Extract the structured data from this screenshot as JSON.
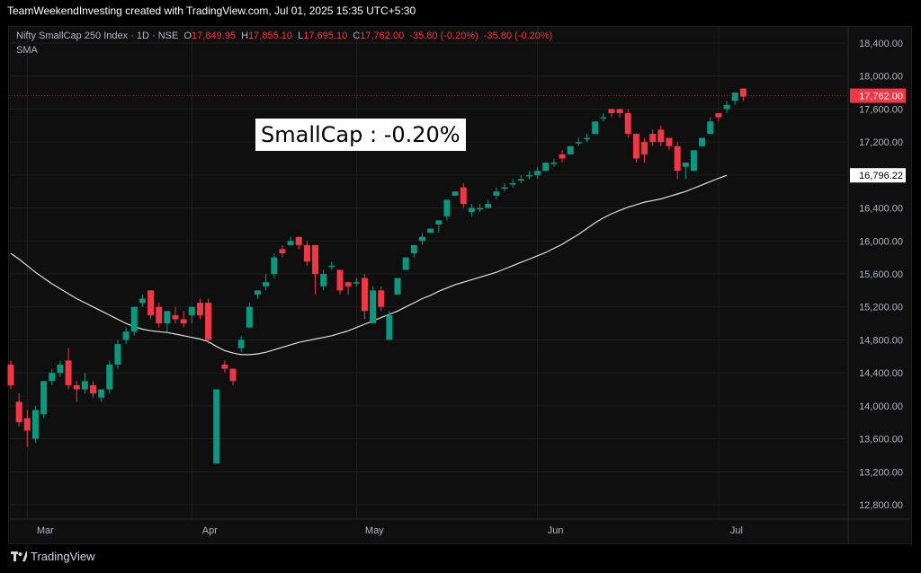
{
  "header": {
    "title": "TeamWeekendInvesting created with TradingView.com, Jul 01, 2025 15:35 UTC+5:30"
  },
  "legend": {
    "symbol": "Nifty SmallCap 250 Index · 1D · NSE",
    "open_label": "O",
    "open": "17,849.95",
    "high_label": "H",
    "high": "17,855.10",
    "low_label": "L",
    "low": "17,695.10",
    "close_label": "C",
    "close": "17,762.00",
    "change": "-35.80 (-0.20%)",
    "change2": "-35.80 (-0.20%)",
    "indicator": "SMA"
  },
  "annotation": {
    "text": "SmallCap : -0.20%"
  },
  "footer": {
    "brand": "TradingView"
  },
  "colors": {
    "up": "#089981",
    "down": "#f23645",
    "sma": "#e0e0e0",
    "background": "#0f0f0f",
    "grid": "#1f1f1f",
    "axis_text": "#b2b5be"
  },
  "chart_data": {
    "type": "candlestick",
    "y_ticks": [
      "18,400.00",
      "18,000.00",
      "17,600.00",
      "17,200.00",
      "16,800.00",
      "16,400.00",
      "16,000.00",
      "15,600.00",
      "15,200.00",
      "14,800.00",
      "14,400.00",
      "14,000.00",
      "13,600.00",
      "13,200.00",
      "12,800.00"
    ],
    "y_tick_values": [
      18400,
      18000,
      17600,
      17200,
      16800,
      16400,
      16000,
      15600,
      15200,
      14800,
      14400,
      14000,
      13600,
      13200,
      12800
    ],
    "ylim": [
      12600,
      18800
    ],
    "x_labels": [
      {
        "label": "Mar",
        "index": 2
      },
      {
        "label": "Apr",
        "index": 22
      },
      {
        "label": "May",
        "index": 42
      },
      {
        "label": "Jun",
        "index": 64
      },
      {
        "label": "Jul",
        "index": 86
      }
    ],
    "last_price_label": "17,762.00",
    "last_price_value": 17762,
    "sma_label": "16,796.22",
    "sma_value": 16796.22,
    "candles": [
      [
        14500,
        14550,
        14200,
        14250
      ],
      [
        14050,
        14150,
        13750,
        13800
      ],
      [
        13850,
        13950,
        13500,
        13700
      ],
      [
        13600,
        14000,
        13550,
        13950
      ],
      [
        13900,
        14300,
        13850,
        14300
      ],
      [
        14300,
        14450,
        14250,
        14400
      ],
      [
        14400,
        14550,
        14350,
        14500
      ],
      [
        14550,
        14700,
        14200,
        14250
      ],
      [
        14250,
        14300,
        14050,
        14200
      ],
      [
        14200,
        14400,
        14150,
        14300
      ],
      [
        14250,
        14300,
        14100,
        14150
      ],
      [
        14100,
        14200,
        14050,
        14200
      ],
      [
        14200,
        14550,
        14150,
        14500
      ],
      [
        14500,
        14800,
        14450,
        14750
      ],
      [
        14800,
        14950,
        14750,
        14900
      ],
      [
        14900,
        15200,
        14850,
        15200
      ],
      [
        15250,
        15350,
        15200,
        15300
      ],
      [
        15400,
        15400,
        15050,
        15100
      ],
      [
        15200,
        15250,
        14950,
        15000
      ],
      [
        15000,
        15150,
        14900,
        15150
      ],
      [
        15100,
        15200,
        15000,
        15050
      ],
      [
        15050,
        15150,
        14950,
        15000
      ],
      [
        15100,
        15200,
        15000,
        15200
      ],
      [
        15250,
        15300,
        15050,
        15100
      ],
      [
        15250,
        15300,
        14750,
        14800
      ],
      [
        13300,
        14200,
        13300,
        14200
      ],
      [
        14500,
        14550,
        14400,
        14450
      ],
      [
        14450,
        14450,
        14250,
        14300
      ],
      [
        14700,
        14850,
        14650,
        14800
      ],
      [
        14950,
        15250,
        14950,
        15200
      ],
      [
        15350,
        15400,
        15300,
        15400
      ],
      [
        15450,
        15600,
        15400,
        15500
      ],
      [
        15600,
        15850,
        15550,
        15800
      ],
      [
        15900,
        15950,
        15800,
        15850
      ],
      [
        15950,
        16050,
        15950,
        16000
      ],
      [
        16050,
        16050,
        15900,
        15950
      ],
      [
        15950,
        16000,
        15700,
        15750
      ],
      [
        15950,
        15950,
        15350,
        15600
      ],
      [
        15450,
        15650,
        15400,
        15600
      ],
      [
        15700,
        15750,
        15650,
        15700
      ],
      [
        15650,
        15650,
        15350,
        15400
      ],
      [
        15500,
        15500,
        15350,
        15450
      ],
      [
        15500,
        15550,
        15450,
        15500
      ],
      [
        15550,
        15600,
        15050,
        15150
      ],
      [
        15000,
        15450,
        15000,
        15400
      ],
      [
        15400,
        15450,
        15150,
        15200
      ],
      [
        14800,
        15150,
        14800,
        15100
      ],
      [
        15350,
        15550,
        15350,
        15550
      ],
      [
        15650,
        15800,
        15650,
        15800
      ],
      [
        15850,
        15950,
        15800,
        15950
      ],
      [
        16000,
        16100,
        15950,
        16050
      ],
      [
        16100,
        16150,
        16100,
        16150
      ],
      [
        16200,
        16250,
        16100,
        16250
      ],
      [
        16300,
        16500,
        16250,
        16500
      ],
      [
        16550,
        16600,
        16550,
        16600
      ],
      [
        16650,
        16700,
        16400,
        16450
      ],
      [
        16350,
        16450,
        16300,
        16400
      ],
      [
        16400,
        16450,
        16350,
        16400
      ],
      [
        16400,
        16500,
        16400,
        16450
      ],
      [
        16550,
        16650,
        16500,
        16600
      ],
      [
        16650,
        16700,
        16600,
        16650
      ],
      [
        16700,
        16750,
        16650,
        16700
      ],
      [
        16750,
        16800,
        16700,
        16750
      ],
      [
        16800,
        16850,
        16750,
        16800
      ],
      [
        16800,
        16900,
        16750,
        16850
      ],
      [
        16850,
        16950,
        16850,
        16950
      ],
      [
        16950,
        17000,
        16900,
        16950
      ],
      [
        17050,
        17100,
        16950,
        17000
      ],
      [
        17050,
        17150,
        17050,
        17150
      ],
      [
        17200,
        17250,
        17150,
        17200
      ],
      [
        17250,
        17300,
        17200,
        17250
      ],
      [
        17300,
        17450,
        17300,
        17450
      ],
      [
        17500,
        17550,
        17450,
        17500
      ],
      [
        17600,
        17600,
        17500,
        17550
      ],
      [
        17600,
        17600,
        17500,
        17550
      ],
      [
        17550,
        17600,
        17250,
        17300
      ],
      [
        17300,
        17300,
        16950,
        17000
      ],
      [
        17200,
        17250,
        16950,
        17050
      ],
      [
        17300,
        17350,
        17150,
        17200
      ],
      [
        17350,
        17400,
        17150,
        17200
      ],
      [
        17250,
        17250,
        17100,
        17150
      ],
      [
        17150,
        17200,
        16750,
        16850
      ],
      [
        16900,
        16950,
        16750,
        16950
      ],
      [
        16850,
        17100,
        16850,
        17100
      ],
      [
        17150,
        17250,
        17150,
        17250
      ],
      [
        17300,
        17500,
        17300,
        17450
      ],
      [
        17550,
        17550,
        17450,
        17500
      ],
      [
        17600,
        17700,
        17550,
        17650
      ],
      [
        17700,
        17800,
        17650,
        17800
      ],
      [
        17850,
        17850,
        17700,
        17750
      ]
    ],
    "sma": [
      15850,
      15780,
      15700,
      15620,
      15550,
      15480,
      15420,
      15360,
      15300,
      15250,
      15200,
      15150,
      15100,
      15050,
      15000,
      14960,
      14930,
      14910,
      14900,
      14890,
      14870,
      14850,
      14830,
      14810,
      14780,
      14720,
      14670,
      14640,
      14620,
      14620,
      14630,
      14650,
      14680,
      14710,
      14740,
      14770,
      14790,
      14810,
      14830,
      14850,
      14880,
      14910,
      14950,
      14990,
      15030,
      15070,
      15110,
      15150,
      15200,
      15250,
      15300,
      15340,
      15390,
      15430,
      15470,
      15500,
      15530,
      15560,
      15590,
      15620,
      15660,
      15700,
      15740,
      15780,
      15820,
      15860,
      15910,
      15960,
      16020,
      16080,
      16150,
      16220,
      16280,
      16330,
      16370,
      16410,
      16440,
      16470,
      16490,
      16510,
      16540,
      16570,
      16600,
      16640,
      16680,
      16720,
      16760,
      16796
    ]
  }
}
